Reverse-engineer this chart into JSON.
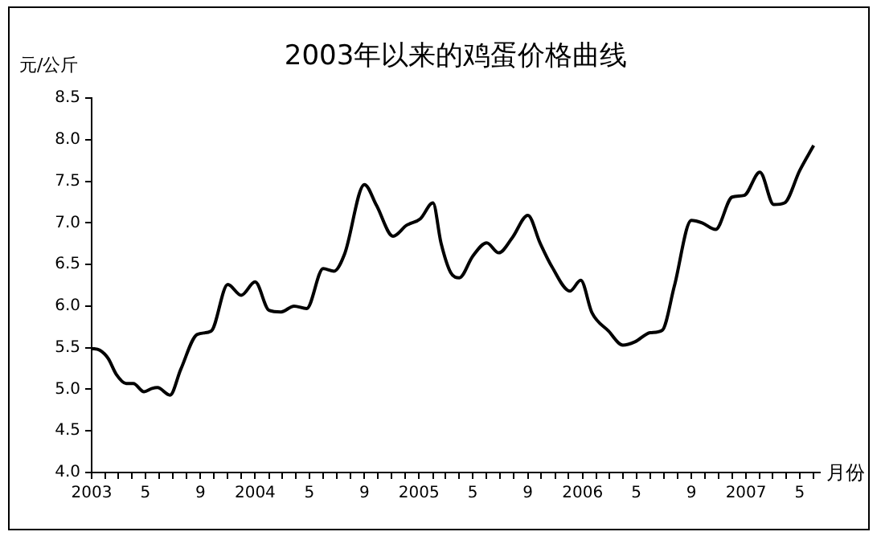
{
  "chart_data": {
    "type": "line",
    "title": "2003年以来的鸡蛋价格曲线",
    "ylabel": "元/公斤",
    "xlabel": "月份",
    "x": [
      "2003-01-01",
      "2003-01-19",
      "2003-02-07",
      "2003-02-25",
      "2003-03-19",
      "2003-04-04",
      "2003-04-28",
      "2003-05-16",
      "2003-05-28",
      "2003-06-25",
      "2003-07-19",
      "2003-08-25",
      "2003-09-25",
      "2003-11-01",
      "2003-12-01",
      "2004-01-01",
      "2004-02-01",
      "2004-02-28",
      "2004-03-28",
      "2004-04-25",
      "2004-06-01",
      "2004-06-25",
      "2004-07-19",
      "2004-09-01",
      "2004-09-28",
      "2004-11-04",
      "2004-12-04",
      "2005-01-04",
      "2005-02-01",
      "2005-02-19",
      "2005-03-13",
      "2005-04-01",
      "2005-05-01",
      "2005-06-01",
      "2005-06-28",
      "2005-07-28",
      "2005-09-01",
      "2005-09-28",
      "2005-10-25",
      "2005-12-04",
      "2005-12-28",
      "2006-01-22",
      "2006-02-28",
      "2006-04-01",
      "2006-04-28",
      "2006-06-01",
      "2006-06-28",
      "2006-07-25",
      "2006-09-01",
      "2006-09-25",
      "2006-10-25",
      "2006-12-01",
      "2006-12-28",
      "2007-02-01",
      "2007-03-04",
      "2007-03-28",
      "2007-05-01",
      "2007-06-01"
    ],
    "series": [
      {
        "color": "#000000",
        "values": [
          5.49,
          5.47,
          5.37,
          5.18,
          5.07,
          5.07,
          4.97,
          5.01,
          5.02,
          4.93,
          5.24,
          5.66,
          5.7,
          6.26,
          6.13,
          6.29,
          5.95,
          5.93,
          6.0,
          5.97,
          6.45,
          6.42,
          6.63,
          7.46,
          7.21,
          6.84,
          6.97,
          7.05,
          7.24,
          6.76,
          6.4,
          6.34,
          6.6,
          6.76,
          6.64,
          6.82,
          7.09,
          6.76,
          6.47,
          6.18,
          6.31,
          5.92,
          5.7,
          5.53,
          5.57,
          5.68,
          5.71,
          6.24,
          7.03,
          7.0,
          6.92,
          7.31,
          7.33,
          7.61,
          7.22,
          7.24,
          7.63,
          7.93
        ]
      }
    ],
    "xlim": [
      "2003-01-01",
      "2007-06-15"
    ],
    "xticks": [
      {
        "value": "2003-01",
        "label": "2003"
      },
      {
        "value": "2003-02",
        "label": null
      },
      {
        "value": "2003-03",
        "label": null
      },
      {
        "value": "2003-04",
        "label": null
      },
      {
        "value": "2003-05",
        "label": "5"
      },
      {
        "value": "2003-06",
        "label": null
      },
      {
        "value": "2003-07",
        "label": null
      },
      {
        "value": "2003-08",
        "label": null
      },
      {
        "value": "2003-09",
        "label": "9"
      },
      {
        "value": "2003-10",
        "label": null
      },
      {
        "value": "2003-11",
        "label": null
      },
      {
        "value": "2003-12",
        "label": null
      },
      {
        "value": "2004-01",
        "label": "2004"
      },
      {
        "value": "2004-02",
        "label": null
      },
      {
        "value": "2004-03",
        "label": null
      },
      {
        "value": "2004-04",
        "label": null
      },
      {
        "value": "2004-05",
        "label": "5"
      },
      {
        "value": "2004-06",
        "label": null
      },
      {
        "value": "2004-07",
        "label": null
      },
      {
        "value": "2004-08",
        "label": null
      },
      {
        "value": "2004-09",
        "label": "9"
      },
      {
        "value": "2004-10",
        "label": null
      },
      {
        "value": "2004-11",
        "label": null
      },
      {
        "value": "2004-12",
        "label": null
      },
      {
        "value": "2005-01",
        "label": "2005"
      },
      {
        "value": "2005-02",
        "label": null
      },
      {
        "value": "2005-03",
        "label": null
      },
      {
        "value": "2005-04",
        "label": null
      },
      {
        "value": "2005-05",
        "label": "5"
      },
      {
        "value": "2005-06",
        "label": null
      },
      {
        "value": "2005-07",
        "label": null
      },
      {
        "value": "2005-08",
        "label": null
      },
      {
        "value": "2005-09",
        "label": "9"
      },
      {
        "value": "2005-10",
        "label": null
      },
      {
        "value": "2005-11",
        "label": null
      },
      {
        "value": "2005-12",
        "label": null
      },
      {
        "value": "2006-01",
        "label": "2006"
      },
      {
        "value": "2006-02",
        "label": null
      },
      {
        "value": "2006-03",
        "label": null
      },
      {
        "value": "2006-04",
        "label": null
      },
      {
        "value": "2006-05",
        "label": "5"
      },
      {
        "value": "2006-06",
        "label": null
      },
      {
        "value": "2006-07",
        "label": null
      },
      {
        "value": "2006-08",
        "label": null
      },
      {
        "value": "2006-09",
        "label": "9"
      },
      {
        "value": "2006-10",
        "label": null
      },
      {
        "value": "2006-11",
        "label": null
      },
      {
        "value": "2006-12",
        "label": null
      },
      {
        "value": "2007-01",
        "label": "2007"
      },
      {
        "value": "2007-02",
        "label": null
      },
      {
        "value": "2007-03",
        "label": null
      },
      {
        "value": "2007-04",
        "label": null
      },
      {
        "value": "2007-05",
        "label": "5"
      },
      {
        "value": "2007-06",
        "label": null
      }
    ],
    "ylim": [
      4,
      8.5
    ],
    "yticks": [
      {
        "value": 4,
        "label": "4.0"
      },
      {
        "value": 4.5,
        "label": "4.5"
      },
      {
        "value": 5,
        "label": "5.0"
      },
      {
        "value": 5.5,
        "label": "5.5"
      },
      {
        "value": 6,
        "label": "6.0"
      },
      {
        "value": 6.5,
        "label": "6.5"
      },
      {
        "value": 7,
        "label": "7.0"
      },
      {
        "value": 7.5,
        "label": "7.5"
      },
      {
        "value": 8,
        "label": "8.0"
      },
      {
        "value": 8.5,
        "label": "8.5"
      }
    ],
    "grid": false,
    "legend": false,
    "marker": "none",
    "line_style": "solid"
  }
}
